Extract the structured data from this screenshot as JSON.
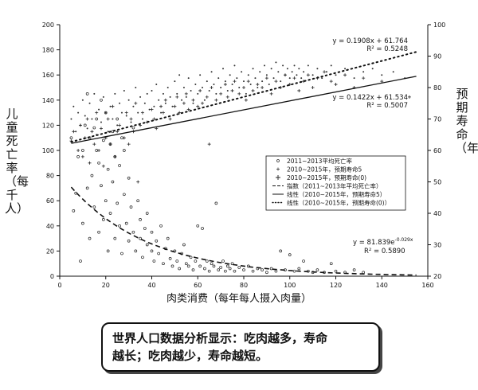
{
  "chart_data": {
    "type": "scatter",
    "xlabel": "肉类消费（每年每人摄入肉量）",
    "ylabel_left": "儿童死亡率（每千人）",
    "ylabel_right": "预期寿命（年）",
    "xlim": [
      0,
      160
    ],
    "ylim_left": [
      0,
      200
    ],
    "ylim_right": [
      20,
      100
    ],
    "x_ticks": [
      0,
      20,
      40,
      60,
      80,
      100,
      120,
      140,
      160
    ],
    "y_left_ticks": [
      0,
      20,
      40,
      60,
      80,
      100,
      120,
      140,
      160,
      180,
      200
    ],
    "y_right_ticks": [
      20,
      30,
      40,
      50,
      60,
      70,
      80,
      90,
      100
    ],
    "grid": false,
    "legend_position": "center-right",
    "legend": [
      "2011~2013平均死亡率",
      "2010~2015年，预期寿命5",
      "2010~2015年，预期寿命(0)",
      "指数（2011~2013年平均死亡率）",
      "线性（2010~2015年，预期寿命5）",
      "线性（2010~2015年，预期寿命(0)）"
    ],
    "trendlines": [
      {
        "type": "linear",
        "axis": "right",
        "slope": 0.1908,
        "intercept": 61.764,
        "style": "dotted",
        "eq": "y = 0.1908x + 61.764",
        "r2": "R² = 0.5248"
      },
      {
        "type": "linear",
        "axis": "right",
        "slope": 0.1422,
        "intercept": 61.534,
        "style": "solid",
        "eq": "y = 0.1422x + 61.534",
        "r2": "R² = 0.5007"
      },
      {
        "type": "exponential",
        "axis": "left",
        "a": 81.839,
        "b": -0.029,
        "style": "dashed",
        "eq_base": "y = 81.839e",
        "eq_exp": "-0.029x",
        "r2": "R² = 0.5890"
      }
    ],
    "series": [
      {
        "marker": "circle",
        "axis": "left",
        "points": [
          [
            5,
            110
          ],
          [
            6,
            52
          ],
          [
            7,
            66
          ],
          [
            8,
            95
          ],
          [
            9,
            12
          ],
          [
            10,
            42
          ],
          [
            10,
            100
          ],
          [
            11,
            120
          ],
          [
            12,
            70
          ],
          [
            12,
            145
          ],
          [
            13,
            110
          ],
          [
            13,
            30
          ],
          [
            14,
            80
          ],
          [
            15,
            118
          ],
          [
            15,
            55
          ],
          [
            16,
            100
          ],
          [
            16,
            125
          ],
          [
            17,
            35
          ],
          [
            17,
            90
          ],
          [
            18,
            140
          ],
          [
            18,
            72
          ],
          [
            19,
            45
          ],
          [
            19,
            108
          ],
          [
            20,
            60
          ],
          [
            20,
            130
          ],
          [
            21,
            20
          ],
          [
            21,
            85
          ],
          [
            22,
            105
          ],
          [
            22,
            50
          ],
          [
            23,
            75
          ],
          [
            23,
            115
          ],
          [
            24,
            30
          ],
          [
            24,
            95
          ],
          [
            25,
            58
          ],
          [
            25,
            125
          ],
          [
            26,
            40
          ],
          [
            26,
            88
          ],
          [
            27,
            110
          ],
          [
            27,
            18
          ],
          [
            28,
            65
          ],
          [
            28,
            100
          ],
          [
            29,
            42
          ],
          [
            30,
            28
          ],
          [
            30,
            78
          ],
          [
            31,
            55
          ],
          [
            32,
            118
          ],
          [
            32,
            35
          ],
          [
            33,
            20
          ],
          [
            34,
            60
          ],
          [
            35,
            45
          ],
          [
            35,
            30
          ],
          [
            36,
            15
          ],
          [
            37,
            38
          ],
          [
            38,
            25
          ],
          [
            38,
            50
          ],
          [
            40,
            20
          ],
          [
            40,
            35
          ],
          [
            41,
            12
          ],
          [
            42,
            28
          ],
          [
            43,
            18
          ],
          [
            44,
            40
          ],
          [
            45,
            10
          ],
          [
            46,
            22
          ],
          [
            47,
            30
          ],
          [
            48,
            14
          ],
          [
            49,
            8
          ],
          [
            50,
            20
          ],
          [
            51,
            12
          ],
          [
            52,
            6
          ],
          [
            53,
            18
          ],
          [
            54,
            25
          ],
          [
            55,
            10
          ],
          [
            56,
            8
          ],
          [
            57,
            15
          ],
          [
            58,
            5
          ],
          [
            59,
            12
          ],
          [
            60,
            40
          ],
          [
            61,
            8
          ],
          [
            62,
            38
          ],
          [
            63,
            6
          ],
          [
            64,
            12
          ],
          [
            65,
            4
          ],
          [
            66,
            10
          ],
          [
            67,
            8
          ],
          [
            68,
            58
          ],
          [
            69,
            5
          ],
          [
            70,
            7
          ],
          [
            71,
            12
          ],
          [
            72,
            4
          ],
          [
            73,
            8
          ],
          [
            74,
            6
          ],
          [
            75,
            10
          ],
          [
            76,
            4
          ],
          [
            78,
            7
          ],
          [
            80,
            5
          ],
          [
            82,
            8
          ],
          [
            84,
            4
          ],
          [
            86,
            6
          ],
          [
            88,
            5
          ],
          [
            90,
            3
          ],
          [
            92,
            6
          ],
          [
            94,
            4
          ],
          [
            96,
            20
          ],
          [
            98,
            5
          ],
          [
            100,
            17
          ],
          [
            102,
            4
          ],
          [
            104,
            6
          ],
          [
            106,
            12
          ],
          [
            108,
            4
          ],
          [
            110,
            3
          ],
          [
            112,
            5
          ],
          [
            115,
            3
          ],
          [
            118,
            10
          ],
          [
            120,
            4
          ],
          [
            124,
            3
          ],
          [
            128,
            5
          ],
          [
            132,
            3
          ]
        ]
      },
      {
        "marker": "plus",
        "axis": "right",
        "points": [
          [
            5,
            63
          ],
          [
            6,
            66
          ],
          [
            8,
            60
          ],
          [
            9,
            68
          ],
          [
            10,
            58
          ],
          [
            11,
            64
          ],
          [
            12,
            70
          ],
          [
            13,
            56
          ],
          [
            14,
            66
          ],
          [
            15,
            62
          ],
          [
            16,
            72
          ],
          [
            17,
            60
          ],
          [
            18,
            67
          ],
          [
            19,
            55
          ],
          [
            20,
            64
          ],
          [
            21,
            70
          ],
          [
            22,
            62
          ],
          [
            23,
            74
          ],
          [
            24,
            58
          ],
          [
            25,
            66
          ],
          [
            26,
            68
          ],
          [
            28,
            64
          ],
          [
            29,
            72
          ],
          [
            30,
            62
          ],
          [
            31,
            70
          ],
          [
            32,
            66
          ],
          [
            33,
            75
          ],
          [
            34,
            50
          ],
          [
            35,
            68
          ],
          [
            36,
            72
          ],
          [
            38,
            69
          ],
          [
            40,
            73
          ],
          [
            41,
            70
          ],
          [
            42,
            67
          ],
          [
            44,
            74
          ],
          [
            45,
            72
          ],
          [
            46,
            76
          ],
          [
            48,
            70
          ],
          [
            50,
            74
          ],
          [
            51,
            77
          ],
          [
            52,
            72
          ],
          [
            54,
            75
          ],
          [
            55,
            78
          ],
          [
            56,
            73
          ],
          [
            58,
            76
          ],
          [
            60,
            74
          ],
          [
            61,
            79
          ],
          [
            62,
            75
          ],
          [
            64,
            77
          ],
          [
            65,
            62
          ],
          [
            66,
            80
          ],
          [
            68,
            76
          ],
          [
            70,
            78
          ],
          [
            72,
            81
          ],
          [
            73,
            77
          ],
          [
            75,
            79
          ],
          [
            76,
            82
          ],
          [
            78,
            78
          ],
          [
            80,
            80
          ],
          [
            81,
            76
          ],
          [
            82,
            82
          ],
          [
            84,
            79
          ],
          [
            86,
            81
          ],
          [
            88,
            80
          ],
          [
            90,
            83
          ],
          [
            92,
            78
          ],
          [
            94,
            82
          ],
          [
            96,
            80
          ],
          [
            98,
            84
          ],
          [
            100,
            81
          ],
          [
            102,
            83
          ],
          [
            104,
            79
          ],
          [
            106,
            82
          ],
          [
            108,
            84
          ],
          [
            110,
            80
          ],
          [
            112,
            83
          ],
          [
            115,
            85
          ],
          [
            118,
            82
          ],
          [
            120,
            81
          ],
          [
            124,
            84
          ],
          [
            128,
            80
          ],
          [
            132,
            83
          ],
          [
            140,
            82
          ],
          [
            152,
            77
          ]
        ]
      },
      {
        "marker": "dot",
        "axis": "right",
        "points": [
          [
            5,
            70
          ],
          [
            6,
            74
          ],
          [
            7,
            66
          ],
          [
            8,
            72
          ],
          [
            9,
            68
          ],
          [
            10,
            76
          ],
          [
            11,
            71
          ],
          [
            12,
            67
          ],
          [
            13,
            75
          ],
          [
            14,
            70
          ],
          [
            15,
            78
          ],
          [
            16,
            65
          ],
          [
            17,
            73
          ],
          [
            18,
            69
          ],
          [
            19,
            77
          ],
          [
            20,
            72
          ],
          [
            21,
            66
          ],
          [
            22,
            74
          ],
          [
            23,
            70
          ],
          [
            24,
            78
          ],
          [
            25,
            68
          ],
          [
            26,
            75
          ],
          [
            27,
            72
          ],
          [
            28,
            79
          ],
          [
            29,
            71
          ],
          [
            30,
            76
          ],
          [
            31,
            69
          ],
          [
            32,
            74
          ],
          [
            33,
            80
          ],
          [
            34,
            72
          ],
          [
            35,
            77
          ],
          [
            36,
            70
          ],
          [
            37,
            75
          ],
          [
            38,
            78
          ],
          [
            39,
            73
          ],
          [
            40,
            79
          ],
          [
            41,
            74
          ],
          [
            42,
            81
          ],
          [
            43,
            76
          ],
          [
            44,
            72
          ],
          [
            45,
            78
          ],
          [
            46,
            75
          ],
          [
            47,
            80
          ],
          [
            48,
            77
          ],
          [
            49,
            74
          ],
          [
            50,
            82
          ],
          [
            51,
            78
          ],
          [
            52,
            84
          ],
          [
            53,
            76
          ],
          [
            54,
            80
          ],
          [
            55,
            77
          ],
          [
            56,
            83
          ],
          [
            57,
            79
          ],
          [
            58,
            75
          ],
          [
            59,
            81
          ],
          [
            60,
            78
          ],
          [
            61,
            84
          ],
          [
            62,
            80
          ],
          [
            63,
            76
          ],
          [
            64,
            82
          ],
          [
            65,
            79
          ],
          [
            66,
            85
          ],
          [
            67,
            81
          ],
          [
            68,
            78
          ],
          [
            69,
            83
          ],
          [
            70,
            80
          ],
          [
            71,
            86
          ],
          [
            72,
            82
          ],
          [
            73,
            79
          ],
          [
            74,
            84
          ],
          [
            75,
            81
          ],
          [
            76,
            87
          ],
          [
            77,
            83
          ],
          [
            78,
            80
          ],
          [
            79,
            85
          ],
          [
            80,
            82
          ],
          [
            81,
            78
          ],
          [
            82,
            84
          ],
          [
            83,
            81
          ],
          [
            84,
            86
          ],
          [
            85,
            83
          ],
          [
            86,
            80
          ],
          [
            87,
            85
          ],
          [
            88,
            82
          ],
          [
            89,
            87
          ],
          [
            90,
            84
          ],
          [
            91,
            81
          ],
          [
            92,
            86
          ],
          [
            93,
            83
          ],
          [
            94,
            88
          ],
          [
            95,
            85
          ],
          [
            96,
            82
          ],
          [
            97,
            87
          ],
          [
            98,
            84
          ],
          [
            99,
            86
          ],
          [
            100,
            83
          ],
          [
            101,
            85
          ],
          [
            102,
            87
          ],
          [
            103,
            84
          ],
          [
            104,
            86
          ],
          [
            105,
            83
          ],
          [
            106,
            85
          ],
          [
            108,
            87
          ],
          [
            110,
            84
          ],
          [
            112,
            86
          ],
          [
            114,
            83
          ],
          [
            116,
            85
          ],
          [
            118,
            87
          ],
          [
            120,
            84
          ],
          [
            124,
            86
          ],
          [
            128,
            83
          ],
          [
            132,
            85
          ],
          [
            136,
            86
          ],
          [
            140,
            84
          ],
          [
            145,
            85
          ],
          [
            150,
            83
          ]
        ]
      }
    ]
  },
  "callout": {
    "line1": "世界人口数据分析显示：吃肉越多，寿命",
    "line2": "越长；吃肉越少，寿命越短。"
  }
}
